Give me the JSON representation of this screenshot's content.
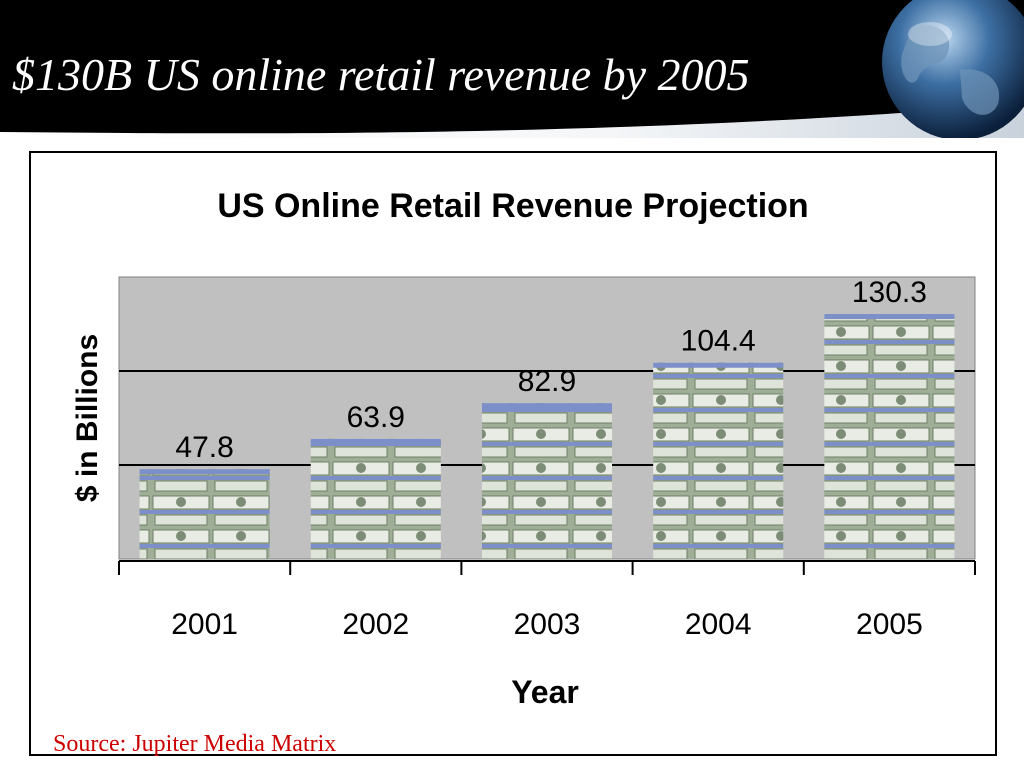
{
  "slide": {
    "title": "$130B US online retail revenue by 2005",
    "source": "Source: Jupiter Media Matrix"
  },
  "colors": {
    "header_background": "#000000",
    "plot_background": "#c0c0c0",
    "bar_money_green": "#9fae96",
    "band_blue": "#7c8fc8",
    "source_text": "#cc0000"
  },
  "icons": [
    "globe-icon",
    "money-bill-texture"
  ],
  "chart_data": {
    "type": "bar",
    "title": "US Online Retail Revenue Projection",
    "xlabel": "Year",
    "ylabel": "$ in Billions",
    "categories": [
      "2001",
      "2002",
      "2003",
      "2004",
      "2005"
    ],
    "values": [
      47.8,
      63.9,
      82.9,
      104.4,
      130.3
    ],
    "data_labels": [
      "47.8",
      "63.9",
      "82.9",
      "104.4",
      "130.3"
    ],
    "ylim": [
      0,
      150
    ],
    "grid": true,
    "legend": "none"
  }
}
